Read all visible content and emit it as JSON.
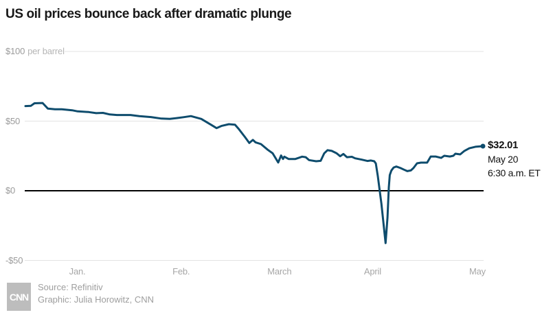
{
  "title": "US oil prices bounce back after dramatic plunge",
  "footer": {
    "logo_text": "CNN",
    "source_line": "Source: Refinitiv",
    "credit_line": "Graphic: Julia Horowitz, CNN"
  },
  "colors": {
    "line": "#0e4c6d",
    "grid": "#e3e3e3",
    "zero_line": "#000000",
    "axis_text": "#9b9b9b",
    "unit_text": "#b5b5b5",
    "title_text": "#181818",
    "annotation_text": "#111111",
    "footer_text": "#9e9e9e",
    "logo_bg": "#bdbdbd",
    "background": "#ffffff"
  },
  "chart_data": {
    "type": "line",
    "title": "US oil prices bounce back after dramatic plunge",
    "ylabel": "$ per barrel",
    "unit_label": "per barrel",
    "ylim": [
      -50,
      100
    ],
    "x_unit": "days since Dec 31, 2019",
    "xlim": [
      0,
      141
    ],
    "grid": "horizontal",
    "legend": "none",
    "y_ticks": [
      {
        "label": "$100",
        "suffix": "per barrel",
        "value": 100
      },
      {
        "label": "$50",
        "value": 50
      },
      {
        "label": "$0",
        "value": 0
      },
      {
        "label": "-$50",
        "value": -50
      }
    ],
    "x_ticks": [
      {
        "label": "Jan.",
        "day": 16
      },
      {
        "label": "Feb.",
        "day": 48
      },
      {
        "label": "March",
        "day": 78.3
      },
      {
        "label": "April",
        "day": 107
      },
      {
        "label": "May",
        "day": 139.3
      }
    ],
    "series": [
      {
        "name": "US crude oil price ($ per barrel)",
        "points": [
          [
            0,
            60.8
          ],
          [
            1.7,
            61.0
          ],
          [
            2.8,
            62.8
          ],
          [
            5.3,
            63.0
          ],
          [
            6.9,
            59.0
          ],
          [
            9.1,
            58.5
          ],
          [
            11.2,
            58.5
          ],
          [
            14.4,
            57.8
          ],
          [
            16.1,
            57.0
          ],
          [
            19.5,
            56.5
          ],
          [
            21.8,
            55.7
          ],
          [
            23.9,
            55.9
          ],
          [
            26,
            54.8
          ],
          [
            28.2,
            54.4
          ],
          [
            32.4,
            54.4
          ],
          [
            35.1,
            53.6
          ],
          [
            38.7,
            52.9
          ],
          [
            41.9,
            51.8
          ],
          [
            44.5,
            51.6
          ],
          [
            46.8,
            52.2
          ],
          [
            48.7,
            52.8
          ],
          [
            51,
            53.6
          ],
          [
            54.2,
            51.6
          ],
          [
            57.2,
            47.4
          ],
          [
            58.9,
            45.0
          ],
          [
            60.5,
            46.6
          ],
          [
            62.7,
            47.8
          ],
          [
            64.6,
            47.4
          ],
          [
            65.8,
            44.2
          ],
          [
            67.7,
            38.4
          ],
          [
            69,
            34.3
          ],
          [
            70.1,
            36.5
          ],
          [
            70.9,
            34.8
          ],
          [
            72.6,
            33.5
          ],
          [
            74.7,
            29.4
          ],
          [
            76.2,
            26.9
          ],
          [
            77.9,
            20.3
          ],
          [
            78.8,
            25.3
          ],
          [
            79.4,
            22.8
          ],
          [
            79.8,
            24.5
          ],
          [
            81.1,
            22.8
          ],
          [
            83.2,
            22.8
          ],
          [
            85.3,
            24.5
          ],
          [
            86.4,
            24.1
          ],
          [
            87.4,
            22.0
          ],
          [
            89.6,
            21.2
          ],
          [
            91,
            21.5
          ],
          [
            92.1,
            26.9
          ],
          [
            93.1,
            29.1
          ],
          [
            94.4,
            28.6
          ],
          [
            95.9,
            26.9
          ],
          [
            97,
            24.8
          ],
          [
            98,
            26.4
          ],
          [
            99.1,
            24.1
          ],
          [
            100.6,
            24.4
          ],
          [
            101.6,
            23.3
          ],
          [
            103.7,
            22.3
          ],
          [
            105.4,
            21.4
          ],
          [
            106.5,
            21.7
          ],
          [
            107.5,
            21.2
          ],
          [
            108,
            19.6
          ],
          [
            108.6,
            10.5
          ],
          [
            109.7,
            -9.2
          ],
          [
            111,
            -37.6
          ],
          [
            111.6,
            -19.1
          ],
          [
            112,
            2.3
          ],
          [
            112.3,
            11.3
          ],
          [
            112.8,
            14.6
          ],
          [
            113.5,
            16.7
          ],
          [
            114.3,
            17.4
          ],
          [
            115.6,
            16.3
          ],
          [
            116.7,
            15.1
          ],
          [
            117.7,
            14.1
          ],
          [
            118.8,
            14.6
          ],
          [
            119.6,
            16.3
          ],
          [
            120.7,
            19.7
          ],
          [
            121.9,
            20.2
          ],
          [
            123.8,
            20.2
          ],
          [
            124.9,
            24.6
          ],
          [
            126.4,
            24.6
          ],
          [
            128.1,
            23.6
          ],
          [
            129.1,
            25.1
          ],
          [
            130.8,
            24.6
          ],
          [
            131.9,
            25.1
          ],
          [
            132.5,
            26.6
          ],
          [
            134,
            26.1
          ],
          [
            135.3,
            28.6
          ],
          [
            136.8,
            30.5
          ],
          [
            138.7,
            31.6
          ],
          [
            141,
            32.01
          ]
        ]
      }
    ],
    "end_annotation": {
      "price": "$32.01",
      "date": "May 20",
      "time": "6:30 a.m. ET",
      "value": 32.01
    }
  }
}
